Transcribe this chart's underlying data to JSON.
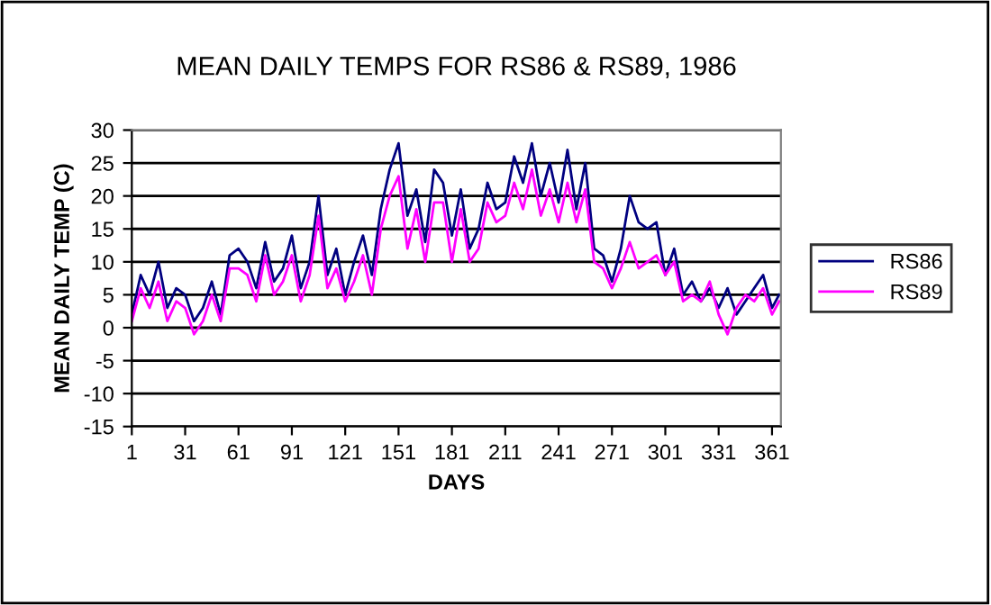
{
  "chart_data": {
    "type": "line",
    "title": "MEAN DAILY TEMPS FOR RS86 & RS89, 1986",
    "xlabel": "DAYS",
    "ylabel": "MEAN DAILY TEMP (C)",
    "x": [
      1,
      6,
      11,
      16,
      21,
      26,
      31,
      36,
      41,
      46,
      51,
      56,
      61,
      66,
      71,
      76,
      81,
      86,
      91,
      96,
      101,
      106,
      111,
      116,
      121,
      126,
      131,
      136,
      141,
      146,
      151,
      156,
      161,
      166,
      171,
      176,
      181,
      186,
      191,
      196,
      201,
      206,
      211,
      216,
      221,
      226,
      231,
      236,
      241,
      246,
      251,
      256,
      261,
      266,
      271,
      276,
      281,
      286,
      291,
      296,
      301,
      306,
      311,
      316,
      321,
      326,
      331,
      336,
      341,
      346,
      351,
      356,
      361,
      365
    ],
    "series": [
      {
        "name": "RS86",
        "color": "#000080",
        "values": [
          2,
          8,
          5,
          10,
          3,
          6,
          5,
          1,
          3,
          7,
          2,
          11,
          12,
          10,
          6,
          13,
          7,
          9,
          14,
          6,
          10,
          20,
          8,
          12,
          5,
          10,
          14,
          8,
          18,
          24,
          28,
          17,
          21,
          13,
          24,
          22,
          14,
          21,
          12,
          15,
          22,
          18,
          19,
          26,
          22,
          28,
          20,
          25,
          19,
          27,
          18,
          25,
          12,
          11,
          7,
          12,
          20,
          16,
          15,
          16,
          8,
          12,
          5,
          7,
          4,
          6,
          3,
          6,
          2,
          4,
          6,
          8,
          3,
          5
        ]
      },
      {
        "name": "RS89",
        "color": "#ff00ff",
        "values": [
          1,
          6,
          3,
          7,
          1,
          4,
          3,
          -1,
          1,
          5,
          1,
          9,
          9,
          8,
          4,
          11,
          5,
          7,
          11,
          4,
          8,
          17,
          6,
          9,
          4,
          7,
          11,
          5,
          15,
          20,
          23,
          12,
          18,
          10,
          19,
          19,
          10,
          18,
          10,
          12,
          19,
          16,
          17,
          22,
          18,
          24,
          17,
          21,
          16,
          22,
          16,
          21,
          10,
          9,
          6,
          9,
          13,
          9,
          10,
          11,
          8,
          10,
          4,
          5,
          4,
          7,
          2,
          -1,
          3,
          5,
          4,
          6,
          2,
          4
        ]
      }
    ],
    "xlim": [
      1,
      366
    ],
    "xticks": [
      1,
      31,
      61,
      91,
      121,
      151,
      181,
      211,
      241,
      271,
      301,
      331,
      361
    ],
    "ylim": [
      -15,
      30
    ],
    "yticks": [
      -15,
      -10,
      -5,
      0,
      5,
      10,
      15,
      20,
      25,
      30
    ],
    "grid": "y",
    "legend": "right",
    "marker": "none",
    "line_style": "solid"
  }
}
